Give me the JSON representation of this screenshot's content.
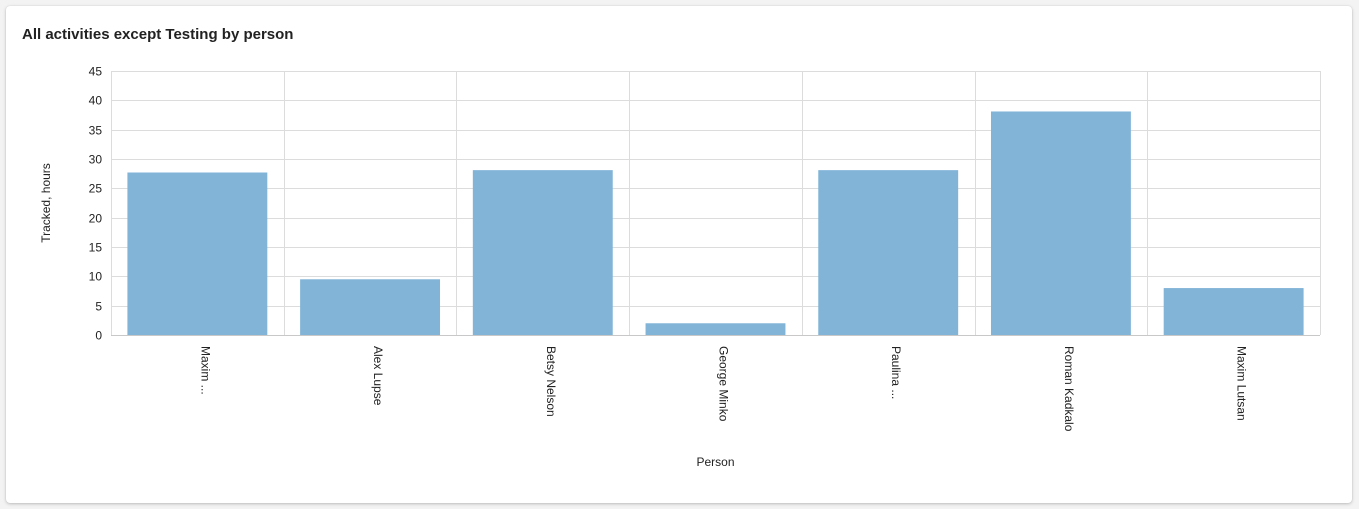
{
  "chart_data": {
    "type": "bar",
    "title": "All activities except Testing by person",
    "xlabel": "Person",
    "ylabel": "Tracked, hours",
    "categories": [
      "Maxim ...",
      "Alex Lupse",
      "Betsy Nelson",
      "George Minko",
      "Paulina ...",
      "Roman Kadkalo",
      "Maxim Lutsan"
    ],
    "values": [
      27.7,
      9.5,
      28.1,
      2.0,
      28.1,
      38.1,
      8.0
    ],
    "ylim": [
      0,
      45
    ],
    "yticks": [
      0,
      5,
      10,
      15,
      20,
      25,
      30,
      35,
      40,
      45
    ],
    "grid": true,
    "colors": {
      "bar": "#82b4d8",
      "grid": "#dcdcdc",
      "axis": "#c8c8c8"
    }
  }
}
